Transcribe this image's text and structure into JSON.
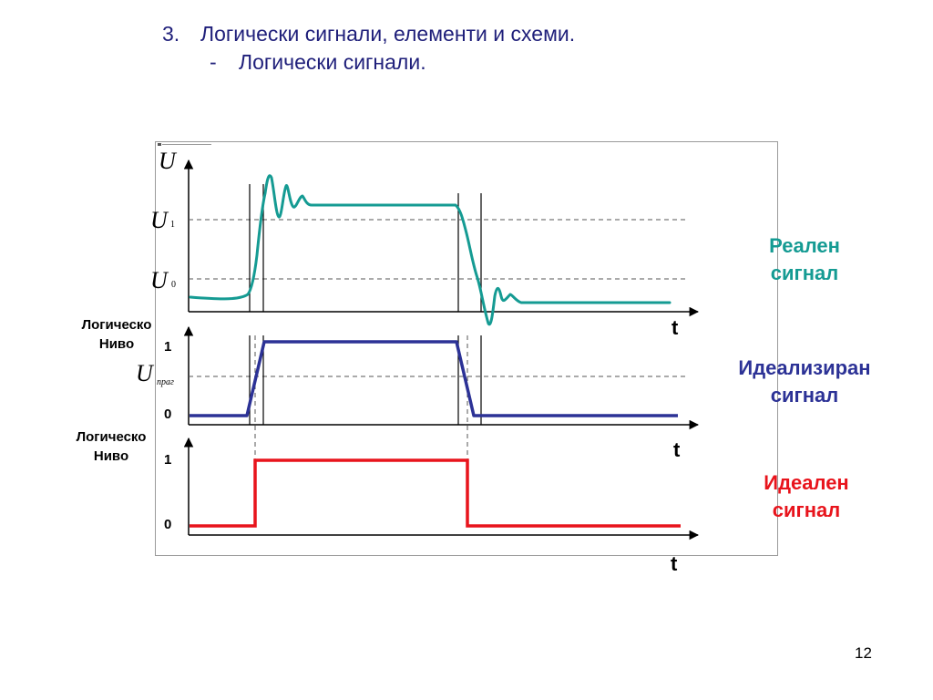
{
  "title": {
    "number": "3.",
    "heading": "Логически сигнали, елементи и схеми.",
    "dash": "-",
    "subheading": "Логически сигнали."
  },
  "labels": {
    "real_signal": [
      "Реален",
      "сигнал"
    ],
    "idealized_signal": [
      "Идеализиран",
      "сигнал"
    ],
    "ideal_signal": [
      "Идеален",
      "сигнал"
    ],
    "logic_level": [
      "Логическо",
      "Ниво"
    ]
  },
  "axis": {
    "u": "U",
    "u1": "U",
    "u1_sub": "1",
    "u0": "U",
    "u0_sub": "0",
    "uthr": "U",
    "uthr_sub": "праг",
    "t": "t",
    "one": "1",
    "zero": "0"
  },
  "colors": {
    "real": "#159b93",
    "idealized": "#2c3296",
    "ideal": "#e8141c"
  },
  "page_number": "12"
}
